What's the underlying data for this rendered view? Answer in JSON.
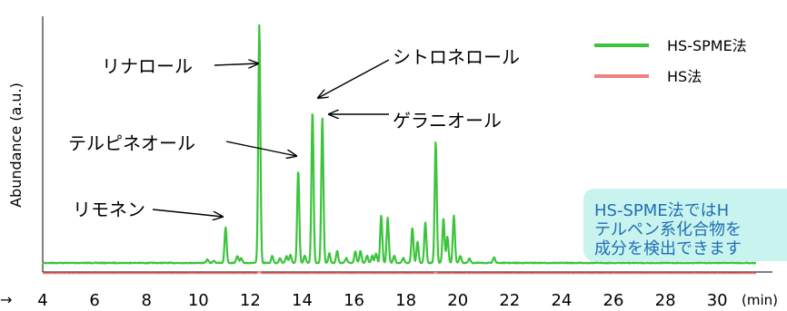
{
  "chart_data": {
    "type": "line",
    "ylabel": "Abundance (a.u.)",
    "xlabel_unit": "(min)",
    "xlabel_prefix": "→",
    "xlim": [
      4,
      31.5
    ],
    "ylim": [
      0,
      100
    ],
    "x_ticks": [
      4,
      6,
      8,
      10,
      12,
      14,
      16,
      18,
      20,
      22,
      24,
      26,
      28,
      30
    ],
    "legend": {
      "placement": "top-right"
    },
    "series": [
      {
        "name": "HS-SPME法",
        "color": "#3cc43c",
        "baseline": 6.5,
        "peaks": [
          {
            "t": 10.35,
            "h": 1.5
          },
          {
            "t": 10.6,
            "h": 1.0
          },
          {
            "t": 11.05,
            "h": 15
          },
          {
            "t": 11.5,
            "h": 3
          },
          {
            "t": 11.65,
            "h": 2
          },
          {
            "t": 12.35,
            "h": 100
          },
          {
            "t": 12.85,
            "h": 3
          },
          {
            "t": 13.15,
            "h": 2
          },
          {
            "t": 13.4,
            "h": 3
          },
          {
            "t": 13.55,
            "h": 3.5
          },
          {
            "t": 13.85,
            "h": 39
          },
          {
            "t": 14.1,
            "h": 3
          },
          {
            "t": 14.4,
            "h": 64
          },
          {
            "t": 14.78,
            "h": 61
          },
          {
            "t": 15.05,
            "h": 4
          },
          {
            "t": 15.35,
            "h": 5
          },
          {
            "t": 15.7,
            "h": 2
          },
          {
            "t": 16.05,
            "h": 5
          },
          {
            "t": 16.25,
            "h": 5
          },
          {
            "t": 16.5,
            "h": 3
          },
          {
            "t": 16.7,
            "h": 3
          },
          {
            "t": 16.85,
            "h": 4
          },
          {
            "t": 17.05,
            "h": 20
          },
          {
            "t": 17.3,
            "h": 19
          },
          {
            "t": 17.55,
            "h": 3
          },
          {
            "t": 17.9,
            "h": 2
          },
          {
            "t": 18.25,
            "h": 15
          },
          {
            "t": 18.45,
            "h": 9
          },
          {
            "t": 18.75,
            "h": 17
          },
          {
            "t": 19.15,
            "h": 51
          },
          {
            "t": 19.45,
            "h": 19
          },
          {
            "t": 19.6,
            "h": 11
          },
          {
            "t": 19.85,
            "h": 20
          },
          {
            "t": 20.1,
            "h": 3
          },
          {
            "t": 20.45,
            "h": 2
          },
          {
            "t": 21.4,
            "h": 2.5
          }
        ]
      },
      {
        "name": "HS法",
        "color": "#f08080",
        "baseline": 0.5,
        "peaks": [
          {
            "t": 12.35,
            "h": 1.2
          },
          {
            "t": 19.15,
            "h": 0.4
          }
        ]
      }
    ],
    "annotations": [
      {
        "label": "リナロール",
        "peak_t": 12.35
      },
      {
        "label": "シトロネロール",
        "peak_t": 14.4
      },
      {
        "label": "ゲラニオール",
        "peak_t": 14.78
      },
      {
        "label": "テルピネオール",
        "peak_t": 13.85
      },
      {
        "label": "リモネン",
        "peak_t": 11.05
      }
    ]
  },
  "callout": {
    "lines": [
      "HS-SPME法ではH",
      "テルペン系化合物を",
      "成分を検出できます"
    ]
  }
}
